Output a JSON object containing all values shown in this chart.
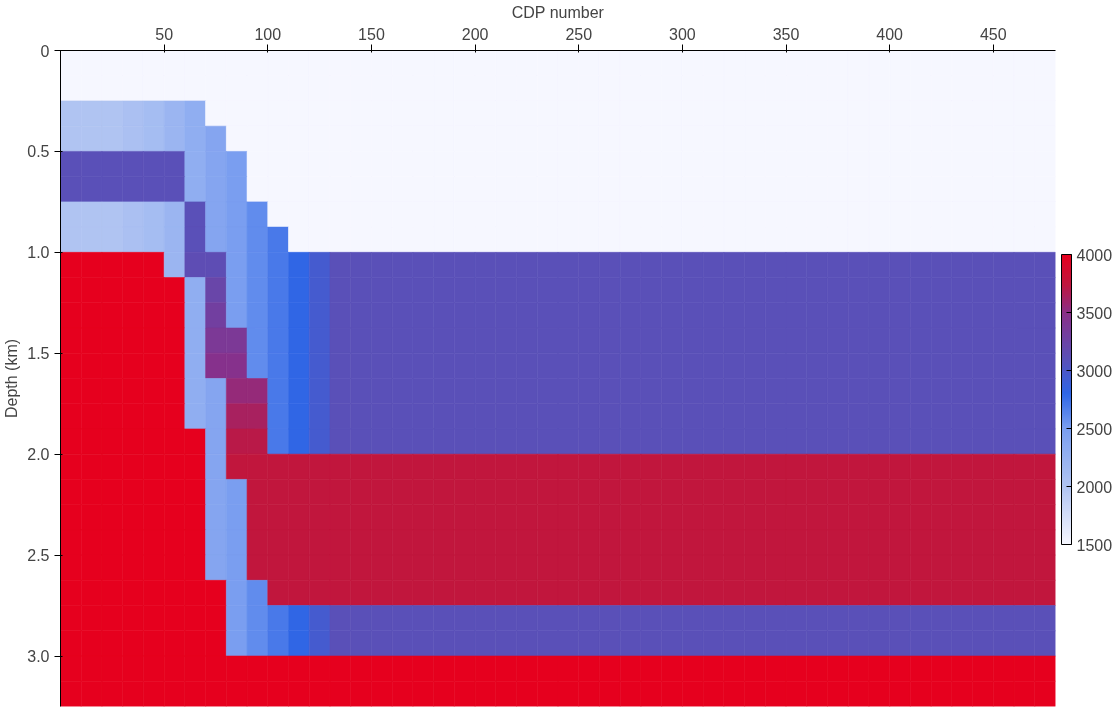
{
  "chart_data": {
    "type": "heatmap",
    "xlabel": "CDP number",
    "ylabel": "Depth (km)",
    "xlim": [
      0,
      480
    ],
    "ylim": [
      3.25,
      0
    ],
    "xticks": [
      50,
      100,
      150,
      200,
      250,
      300,
      350,
      400,
      450
    ],
    "yticks": [
      0,
      0.5,
      {
        "value": 1,
        "label": "1.0"
      },
      1.5,
      {
        "value": 2,
        "label": "2.0"
      },
      2.5,
      {
        "value": 3,
        "label": "3.0"
      }
    ],
    "clim": [
      1500,
      4000
    ],
    "cticks": [
      1500,
      2000,
      2500,
      3000,
      3500,
      4000
    ],
    "x": [
      5,
      15,
      25,
      35,
      45,
      55,
      65,
      75,
      85,
      95,
      105,
      115,
      125,
      135,
      145,
      155,
      165,
      175,
      185,
      195,
      205,
      215,
      225,
      235,
      245,
      255,
      265,
      275,
      285,
      295,
      305,
      315,
      325,
      335,
      345,
      355,
      365,
      375,
      385,
      395,
      405,
      415,
      425,
      435,
      445,
      455,
      465,
      475
    ],
    "cells": [
      [
        1500,
        1500,
        1500,
        1500,
        1500,
        1500,
        1500,
        1500,
        1500,
        1500,
        1500,
        1500,
        1500,
        1500,
        1500,
        1500,
        1500,
        1500,
        1500,
        1500,
        1500,
        1500,
        1500,
        1500,
        1500,
        1500,
        1500,
        1500,
        1500,
        1500,
        1500,
        1500,
        1500,
        1500,
        1500,
        1500,
        1500,
        1500,
        1500,
        1500,
        1500,
        1500,
        1500,
        1500,
        1500,
        1500,
        1500,
        1500
      ],
      [
        1500,
        1500,
        1500,
        1500,
        1500,
        1500,
        1500,
        1500,
        1500,
        1500,
        1500,
        1500,
        1500,
        1500,
        1500,
        1500,
        1500,
        1500,
        1500,
        1500,
        1500,
        1500,
        1500,
        1500,
        1500,
        1500,
        1500,
        1500,
        1500,
        1500,
        1500,
        1500,
        1500,
        1500,
        1500,
        1500,
        1500,
        1500,
        1500,
        1500,
        1500,
        1500,
        1500,
        1500,
        1500,
        1500,
        1500,
        1500
      ],
      [
        2000,
        2000,
        2000,
        2050,
        2100,
        2200,
        2300,
        1500,
        1500,
        1500,
        1500,
        1500,
        1500,
        1500,
        1500,
        1500,
        1500,
        1500,
        1500,
        1500,
        1500,
        1500,
        1500,
        1500,
        1500,
        1500,
        1500,
        1500,
        1500,
        1500,
        1500,
        1500,
        1500,
        1500,
        1500,
        1500,
        1500,
        1500,
        1500,
        1500,
        1500,
        1500,
        1500,
        1500,
        1500,
        1500,
        1500,
        1500
      ],
      [
        2000,
        2000,
        2000,
        2050,
        2100,
        2200,
        2300,
        2400,
        1500,
        1500,
        1500,
        1500,
        1500,
        1500,
        1500,
        1500,
        1500,
        1500,
        1500,
        1500,
        1500,
        1500,
        1500,
        1500,
        1500,
        1500,
        1500,
        1500,
        1500,
        1500,
        1500,
        1500,
        1500,
        1500,
        1500,
        1500,
        1500,
        1500,
        1500,
        1500,
        1500,
        1500,
        1500,
        1500,
        1500,
        1500,
        1500,
        1500
      ],
      [
        3100,
        3100,
        3100,
        3100,
        3100,
        3100,
        2300,
        2400,
        2500,
        1500,
        1500,
        1500,
        1500,
        1500,
        1500,
        1500,
        1500,
        1500,
        1500,
        1500,
        1500,
        1500,
        1500,
        1500,
        1500,
        1500,
        1500,
        1500,
        1500,
        1500,
        1500,
        1500,
        1500,
        1500,
        1500,
        1500,
        1500,
        1500,
        1500,
        1500,
        1500,
        1500,
        1500,
        1500,
        1500,
        1500,
        1500,
        1500
      ],
      [
        3100,
        3100,
        3100,
        3100,
        3100,
        3100,
        2300,
        2400,
        2500,
        1500,
        1500,
        1500,
        1500,
        1500,
        1500,
        1500,
        1500,
        1500,
        1500,
        1500,
        1500,
        1500,
        1500,
        1500,
        1500,
        1500,
        1500,
        1500,
        1500,
        1500,
        1500,
        1500,
        1500,
        1500,
        1500,
        1500,
        1500,
        1500,
        1500,
        1500,
        1500,
        1500,
        1500,
        1500,
        1500,
        1500,
        1500,
        1500
      ],
      [
        2000,
        2000,
        2000,
        2050,
        2100,
        2200,
        3100,
        2400,
        2500,
        2600,
        1500,
        1500,
        1500,
        1500,
        1500,
        1500,
        1500,
        1500,
        1500,
        1500,
        1500,
        1500,
        1500,
        1500,
        1500,
        1500,
        1500,
        1500,
        1500,
        1500,
        1500,
        1500,
        1500,
        1500,
        1500,
        1500,
        1500,
        1500,
        1500,
        1500,
        1500,
        1500,
        1500,
        1500,
        1500,
        1500,
        1500,
        1500
      ],
      [
        2000,
        2000,
        2000,
        2050,
        2100,
        2200,
        3100,
        2400,
        2500,
        2600,
        2700,
        1500,
        1500,
        1500,
        1500,
        1500,
        1500,
        1500,
        1500,
        1500,
        1500,
        1500,
        1500,
        1500,
        1500,
        1500,
        1500,
        1500,
        1500,
        1500,
        1500,
        1500,
        1500,
        1500,
        1500,
        1500,
        1500,
        1500,
        1500,
        1500,
        1500,
        1500,
        1500,
        1500,
        1500,
        1500,
        1500,
        1500
      ],
      [
        4000,
        4000,
        4000,
        4000,
        4000,
        2200,
        3140,
        3140,
        2500,
        2600,
        2700,
        2800,
        2950,
        3100,
        3100,
        3100,
        3100,
        3100,
        3100,
        3100,
        3100,
        3100,
        3100,
        3100,
        3100,
        3100,
        3100,
        3100,
        3100,
        3100,
        3100,
        3100,
        3100,
        3100,
        3100,
        3100,
        3100,
        3100,
        3100,
        3100,
        3100,
        3100,
        3100,
        3100,
        3100,
        3100,
        3100,
        3100
      ],
      [
        4000,
        4000,
        4000,
        4000,
        4000,
        4000,
        2300,
        3220,
        2500,
        2600,
        2700,
        2800,
        2950,
        3100,
        3100,
        3100,
        3100,
        3100,
        3100,
        3100,
        3100,
        3100,
        3100,
        3100,
        3100,
        3100,
        3100,
        3100,
        3100,
        3100,
        3100,
        3100,
        3100,
        3100,
        3100,
        3100,
        3100,
        3100,
        3100,
        3100,
        3100,
        3100,
        3100,
        3100,
        3100,
        3100,
        3100,
        3100
      ],
      [
        4000,
        4000,
        4000,
        4000,
        4000,
        4000,
        2300,
        3300,
        2500,
        2600,
        2700,
        2800,
        2950,
        3100,
        3100,
        3100,
        3100,
        3100,
        3100,
        3100,
        3100,
        3100,
        3100,
        3100,
        3100,
        3100,
        3100,
        3100,
        3100,
        3100,
        3100,
        3100,
        3100,
        3100,
        3100,
        3100,
        3100,
        3100,
        3100,
        3100,
        3100,
        3100,
        3100,
        3100,
        3100,
        3100,
        3100,
        3100
      ],
      [
        4000,
        4000,
        4000,
        4000,
        4000,
        4000,
        2300,
        3380,
        3380,
        2600,
        2700,
        2800,
        2950,
        3100,
        3100,
        3100,
        3100,
        3100,
        3100,
        3100,
        3100,
        3100,
        3100,
        3100,
        3100,
        3100,
        3100,
        3100,
        3100,
        3100,
        3100,
        3100,
        3100,
        3100,
        3100,
        3100,
        3100,
        3100,
        3100,
        3100,
        3100,
        3100,
        3100,
        3100,
        3100,
        3100,
        3100,
        3100
      ],
      [
        4000,
        4000,
        4000,
        4000,
        4000,
        4000,
        2300,
        3470,
        3470,
        2600,
        2700,
        2800,
        2950,
        3100,
        3100,
        3100,
        3100,
        3100,
        3100,
        3100,
        3100,
        3100,
        3100,
        3100,
        3100,
        3100,
        3100,
        3100,
        3100,
        3100,
        3100,
        3100,
        3100,
        3100,
        3100,
        3100,
        3100,
        3100,
        3100,
        3100,
        3100,
        3100,
        3100,
        3100,
        3100,
        3100,
        3100,
        3100
      ],
      [
        4000,
        4000,
        4000,
        4000,
        4000,
        4000,
        2300,
        2400,
        3550,
        3550,
        2700,
        2800,
        2950,
        3100,
        3100,
        3100,
        3100,
        3100,
        3100,
        3100,
        3100,
        3100,
        3100,
        3100,
        3100,
        3100,
        3100,
        3100,
        3100,
        3100,
        3100,
        3100,
        3100,
        3100,
        3100,
        3100,
        3100,
        3100,
        3100,
        3100,
        3100,
        3100,
        3100,
        3100,
        3100,
        3100,
        3100,
        3100
      ],
      [
        4000,
        4000,
        4000,
        4000,
        4000,
        4000,
        2300,
        2400,
        3630,
        3630,
        2700,
        2800,
        2950,
        3100,
        3100,
        3100,
        3100,
        3100,
        3100,
        3100,
        3100,
        3100,
        3100,
        3100,
        3100,
        3100,
        3100,
        3100,
        3100,
        3100,
        3100,
        3100,
        3100,
        3100,
        3100,
        3100,
        3100,
        3100,
        3100,
        3100,
        3100,
        3100,
        3100,
        3100,
        3100,
        3100,
        3100,
        3100
      ],
      [
        4000,
        4000,
        4000,
        4000,
        4000,
        4000,
        4000,
        2400,
        3710,
        3710,
        2700,
        2800,
        2950,
        3100,
        3100,
        3100,
        3100,
        3100,
        3100,
        3100,
        3100,
        3100,
        3100,
        3100,
        3100,
        3100,
        3100,
        3100,
        3100,
        3100,
        3100,
        3100,
        3100,
        3100,
        3100,
        3100,
        3100,
        3100,
        3100,
        3100,
        3100,
        3100,
        3100,
        3100,
        3100,
        3100,
        3100,
        3100
      ],
      [
        4000,
        4000,
        4000,
        4000,
        4000,
        4000,
        4000,
        2400,
        3750,
        3750,
        3750,
        3750,
        3750,
        3750,
        3750,
        3750,
        3750,
        3750,
        3750,
        3750,
        3750,
        3750,
        3750,
        3750,
        3750,
        3750,
        3750,
        3750,
        3750,
        3750,
        3750,
        3750,
        3750,
        3750,
        3750,
        3750,
        3750,
        3750,
        3750,
        3750,
        3750,
        3750,
        3750,
        3750,
        3750,
        3750,
        3750,
        3750
      ],
      [
        4000,
        4000,
        4000,
        4000,
        4000,
        4000,
        4000,
        2400,
        2500,
        3750,
        3750,
        3750,
        3750,
        3750,
        3750,
        3750,
        3750,
        3750,
        3750,
        3750,
        3750,
        3750,
        3750,
        3750,
        3750,
        3750,
        3750,
        3750,
        3750,
        3750,
        3750,
        3750,
        3750,
        3750,
        3750,
        3750,
        3750,
        3750,
        3750,
        3750,
        3750,
        3750,
        3750,
        3750,
        3750,
        3750,
        3750,
        3750
      ],
      [
        4000,
        4000,
        4000,
        4000,
        4000,
        4000,
        4000,
        2400,
        2500,
        3750,
        3750,
        3750,
        3750,
        3750,
        3750,
        3750,
        3750,
        3750,
        3750,
        3750,
        3750,
        3750,
        3750,
        3750,
        3750,
        3750,
        3750,
        3750,
        3750,
        3750,
        3750,
        3750,
        3750,
        3750,
        3750,
        3750,
        3750,
        3750,
        3750,
        3750,
        3750,
        3750,
        3750,
        3750,
        3750,
        3750,
        3750,
        3750
      ],
      [
        4000,
        4000,
        4000,
        4000,
        4000,
        4000,
        4000,
        2400,
        2500,
        3750,
        3750,
        3750,
        3750,
        3750,
        3750,
        3750,
        3750,
        3750,
        3750,
        3750,
        3750,
        3750,
        3750,
        3750,
        3750,
        3750,
        3750,
        3750,
        3750,
        3750,
        3750,
        3750,
        3750,
        3750,
        3750,
        3750,
        3750,
        3750,
        3750,
        3750,
        3750,
        3750,
        3750,
        3750,
        3750,
        3750,
        3750,
        3750
      ],
      [
        4000,
        4000,
        4000,
        4000,
        4000,
        4000,
        4000,
        2400,
        2500,
        3750,
        3750,
        3750,
        3750,
        3750,
        3750,
        3750,
        3750,
        3750,
        3750,
        3750,
        3750,
        3750,
        3750,
        3750,
        3750,
        3750,
        3750,
        3750,
        3750,
        3750,
        3750,
        3750,
        3750,
        3750,
        3750,
        3750,
        3750,
        3750,
        3750,
        3750,
        3750,
        3750,
        3750,
        3750,
        3750,
        3750,
        3750,
        3750
      ],
      [
        4000,
        4000,
        4000,
        4000,
        4000,
        4000,
        4000,
        4000,
        2500,
        2600,
        3750,
        3750,
        3750,
        3750,
        3750,
        3750,
        3750,
        3750,
        3750,
        3750,
        3750,
        3750,
        3750,
        3750,
        3750,
        3750,
        3750,
        3750,
        3750,
        3750,
        3750,
        3750,
        3750,
        3750,
        3750,
        3750,
        3750,
        3750,
        3750,
        3750,
        3750,
        3750,
        3750,
        3750,
        3750,
        3750,
        3750,
        3750
      ],
      [
        4000,
        4000,
        4000,
        4000,
        4000,
        4000,
        4000,
        4000,
        2500,
        2600,
        2700,
        2800,
        2950,
        3100,
        3100,
        3100,
        3100,
        3100,
        3100,
        3100,
        3100,
        3100,
        3100,
        3100,
        3100,
        3100,
        3100,
        3100,
        3100,
        3100,
        3100,
        3100,
        3100,
        3100,
        3100,
        3100,
        3100,
        3100,
        3100,
        3100,
        3100,
        3100,
        3100,
        3100,
        3100,
        3100,
        3100,
        3100
      ],
      [
        4000,
        4000,
        4000,
        4000,
        4000,
        4000,
        4000,
        4000,
        2500,
        2600,
        2700,
        2800,
        2950,
        3100,
        3100,
        3100,
        3100,
        3100,
        3100,
        3100,
        3100,
        3100,
        3100,
        3100,
        3100,
        3100,
        3100,
        3100,
        3100,
        3100,
        3100,
        3100,
        3100,
        3100,
        3100,
        3100,
        3100,
        3100,
        3100,
        3100,
        3100,
        3100,
        3100,
        3100,
        3100,
        3100,
        3100,
        3100
      ],
      [
        4000,
        4000,
        4000,
        4000,
        4000,
        4000,
        4000,
        4000,
        4000,
        4000,
        4000,
        4000,
        4000,
        4000,
        4000,
        4000,
        4000,
        4000,
        4000,
        4000,
        4000,
        4000,
        4000,
        4000,
        4000,
        4000,
        4000,
        4000,
        4000,
        4000,
        4000,
        4000,
        4000,
        4000,
        4000,
        4000,
        4000,
        4000,
        4000,
        4000,
        4000,
        4000,
        4000,
        4000,
        4000,
        4000,
        4000,
        4000
      ],
      [
        4000,
        4000,
        4000,
        4000,
        4000,
        4000,
        4000,
        4000,
        4000,
        4000,
        4000,
        4000,
        4000,
        4000,
        4000,
        4000,
        4000,
        4000,
        4000,
        4000,
        4000,
        4000,
        4000,
        4000,
        4000,
        4000,
        4000,
        4000,
        4000,
        4000,
        4000,
        4000,
        4000,
        4000,
        4000,
        4000,
        4000,
        4000,
        4000,
        4000,
        4000,
        4000,
        4000,
        4000,
        4000,
        4000,
        4000,
        4000
      ]
    ]
  }
}
